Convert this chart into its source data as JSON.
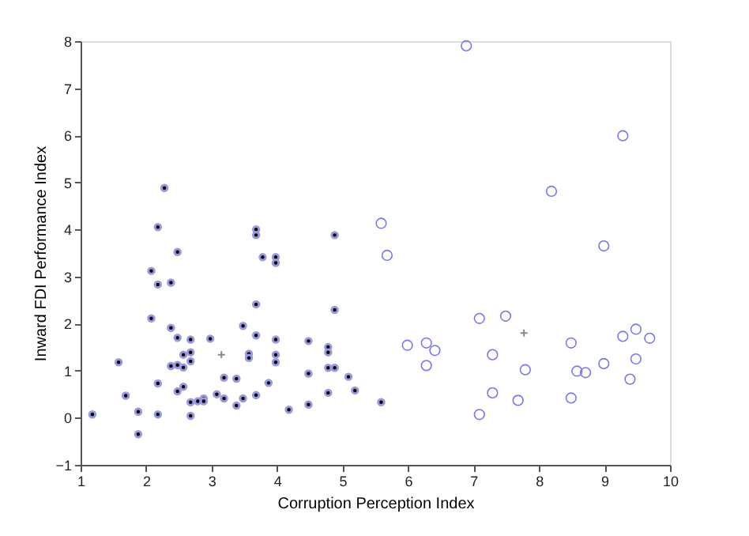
{
  "chart_data": {
    "type": "scatter",
    "xlabel": "Corruption Perception Index",
    "ylabel": "Inward FDI Performance Index",
    "xlim": [
      1,
      10
    ],
    "ylim": [
      -1,
      8
    ],
    "xticks": [
      1,
      2,
      3,
      4,
      5,
      6,
      7,
      8,
      9,
      10
    ],
    "yticks": [
      -1,
      0,
      1,
      2,
      3,
      4,
      5,
      6,
      7,
      8
    ],
    "grid": false,
    "series": [
      {
        "color": "#000000",
        "marker": "circle",
        "x": [
          1.18,
          1.58,
          1.69,
          1.88,
          1.88,
          2.08,
          2.08,
          2.18,
          2.18,
          2.18,
          2.18,
          2.28,
          2.38,
          2.38,
          2.38,
          2.48,
          2.48,
          2.48,
          2.48,
          2.57,
          2.57,
          2.57,
          2.68,
          2.68,
          2.68,
          2.68,
          2.68,
          2.79,
          2.88,
          2.88,
          2.98,
          3.08,
          3.19,
          3.19,
          3.38,
          3.38,
          3.48,
          3.48,
          3.57,
          3.57,
          3.68,
          3.68,
          3.68,
          3.68,
          3.68,
          3.78,
          3.87,
          3.98,
          3.98,
          3.98,
          3.98,
          3.98,
          4.18,
          4.48,
          4.48,
          4.48,
          4.78,
          4.78,
          4.78,
          4.78,
          4.88,
          4.88,
          4.88,
          5.09,
          5.19,
          5.59
        ],
        "values": [
          0.07,
          1.18,
          0.47,
          0.13,
          -0.35,
          3.12,
          2.11,
          4.05,
          2.83,
          0.73,
          0.07,
          4.88,
          2.87,
          1.91,
          1.1,
          3.52,
          1.7,
          1.12,
          0.56,
          1.34,
          1.07,
          0.66,
          1.66,
          1.39,
          1.2,
          0.33,
          0.04,
          0.35,
          0.41,
          0.35,
          1.68,
          0.5,
          0.85,
          0.41,
          0.83,
          0.26,
          1.95,
          0.41,
          1.36,
          1.27,
          4.0,
          3.88,
          2.41,
          1.75,
          0.48,
          3.41,
          0.74,
          3.41,
          3.29,
          1.66,
          1.34,
          1.18,
          0.17,
          1.63,
          0.94,
          0.28,
          1.5,
          1.39,
          1.06,
          0.53,
          3.88,
          2.29,
          1.06,
          0.87,
          0.58,
          0.33
        ]
      },
      {
        "color": "#7777ee",
        "marker": "circle_open",
        "x": [
          6.89,
          5.59,
          5.68,
          5.99,
          6.28,
          6.41,
          6.28,
          7.09,
          7.49,
          7.29,
          7.29,
          7.09,
          7.68,
          7.79,
          8.19,
          8.49,
          8.49,
          8.58,
          8.71,
          8.99,
          8.99,
          9.28,
          9.28,
          9.48,
          9.48,
          9.39,
          9.69
        ],
        "values": [
          7.9,
          4.13,
          3.45,
          1.54,
          1.59,
          1.43,
          1.11,
          2.11,
          2.16,
          1.34,
          0.53,
          0.07,
          0.37,
          1.02,
          4.81,
          1.59,
          0.42,
          0.99,
          0.96,
          3.65,
          1.15,
          5.99,
          1.73,
          1.88,
          1.25,
          0.82,
          1.69
        ]
      },
      {
        "color": "#888888",
        "marker": "cross",
        "x": [
          3.15,
          7.77
        ],
        "values": [
          1.34,
          1.8
        ]
      }
    ]
  }
}
